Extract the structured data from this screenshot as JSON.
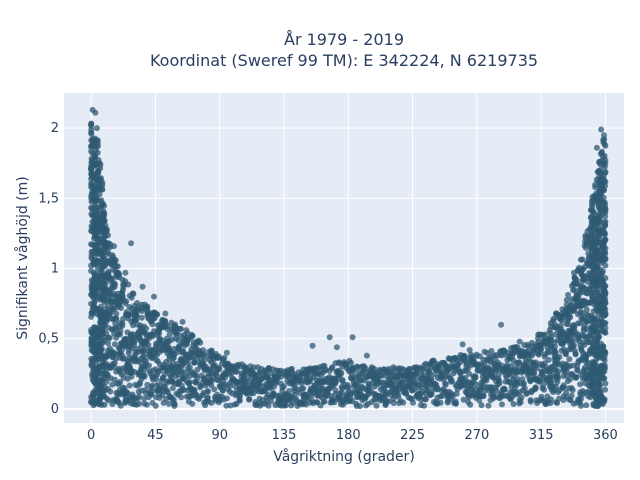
{
  "chart_data": {
    "type": "scatter",
    "title_line1": "År 1979 - 2019",
    "title_line2": "Koordinat (Sweref 99 TM): E 342224, N 6219735",
    "xlabel": "Vågriktning (grader)",
    "ylabel": "Signifikant våghöjd (m)",
    "xlim": [
      -19,
      373
    ],
    "ylim": [
      -0.1,
      2.25
    ],
    "xticks": [
      0,
      45,
      90,
      135,
      180,
      225,
      270,
      315,
      360
    ],
    "xtick_labels": [
      "0",
      "45",
      "90",
      "135",
      "180",
      "225",
      "270",
      "315",
      "360"
    ],
    "yticks": [
      0,
      0.5,
      1,
      1.5,
      2
    ],
    "ytick_labels": [
      "0",
      "0,5",
      "1",
      "1,5",
      "2"
    ],
    "grid": true,
    "marker_color": "#2f5a73",
    "plot_background": "#e5ecf6",
    "upper_envelope": [
      [
        0,
        2.1
      ],
      [
        5,
        1.9
      ],
      [
        10,
        1.35
      ],
      [
        15,
        1.1
      ],
      [
        20,
        1.0
      ],
      [
        25,
        0.9
      ],
      [
        30,
        0.82
      ],
      [
        40,
        0.72
      ],
      [
        50,
        0.65
      ],
      [
        60,
        0.6
      ],
      [
        70,
        0.55
      ],
      [
        80,
        0.45
      ],
      [
        90,
        0.38
      ],
      [
        100,
        0.33
      ],
      [
        120,
        0.3
      ],
      [
        135,
        0.28
      ],
      [
        150,
        0.3
      ],
      [
        165,
        0.32
      ],
      [
        180,
        0.35
      ],
      [
        195,
        0.3
      ],
      [
        210,
        0.3
      ],
      [
        225,
        0.3
      ],
      [
        240,
        0.35
      ],
      [
        255,
        0.38
      ],
      [
        270,
        0.4
      ],
      [
        285,
        0.42
      ],
      [
        300,
        0.45
      ],
      [
        310,
        0.5
      ],
      [
        320,
        0.6
      ],
      [
        330,
        0.75
      ],
      [
        335,
        0.85
      ],
      [
        340,
        1.0
      ],
      [
        345,
        1.2
      ],
      [
        350,
        1.45
      ],
      [
        355,
        1.7
      ],
      [
        358,
        1.9
      ],
      [
        360,
        1.95
      ]
    ],
    "outliers": [
      [
        1,
        2.13
      ],
      [
        3,
        2.11
      ],
      [
        4,
        2.0
      ],
      [
        6,
        1.75
      ],
      [
        12,
        1.18
      ],
      [
        16,
        1.16
      ],
      [
        28,
        1.18
      ],
      [
        24,
        0.97
      ],
      [
        36,
        0.87
      ],
      [
        44,
        0.8
      ],
      [
        52,
        0.68
      ],
      [
        64,
        0.62
      ],
      [
        95,
        0.4
      ],
      [
        155,
        0.45
      ],
      [
        167,
        0.51
      ],
      [
        183,
        0.51
      ],
      [
        172,
        0.44
      ],
      [
        193,
        0.38
      ],
      [
        260,
        0.46
      ],
      [
        265,
        0.42
      ],
      [
        287,
        0.6
      ],
      [
        300,
        0.48
      ],
      [
        318,
        0.53
      ],
      [
        325,
        0.58
      ],
      [
        338,
        0.97
      ],
      [
        346,
        1.22
      ],
      [
        357,
        1.99
      ],
      [
        359,
        1.95
      ],
      [
        354,
        1.86
      ]
    ]
  }
}
